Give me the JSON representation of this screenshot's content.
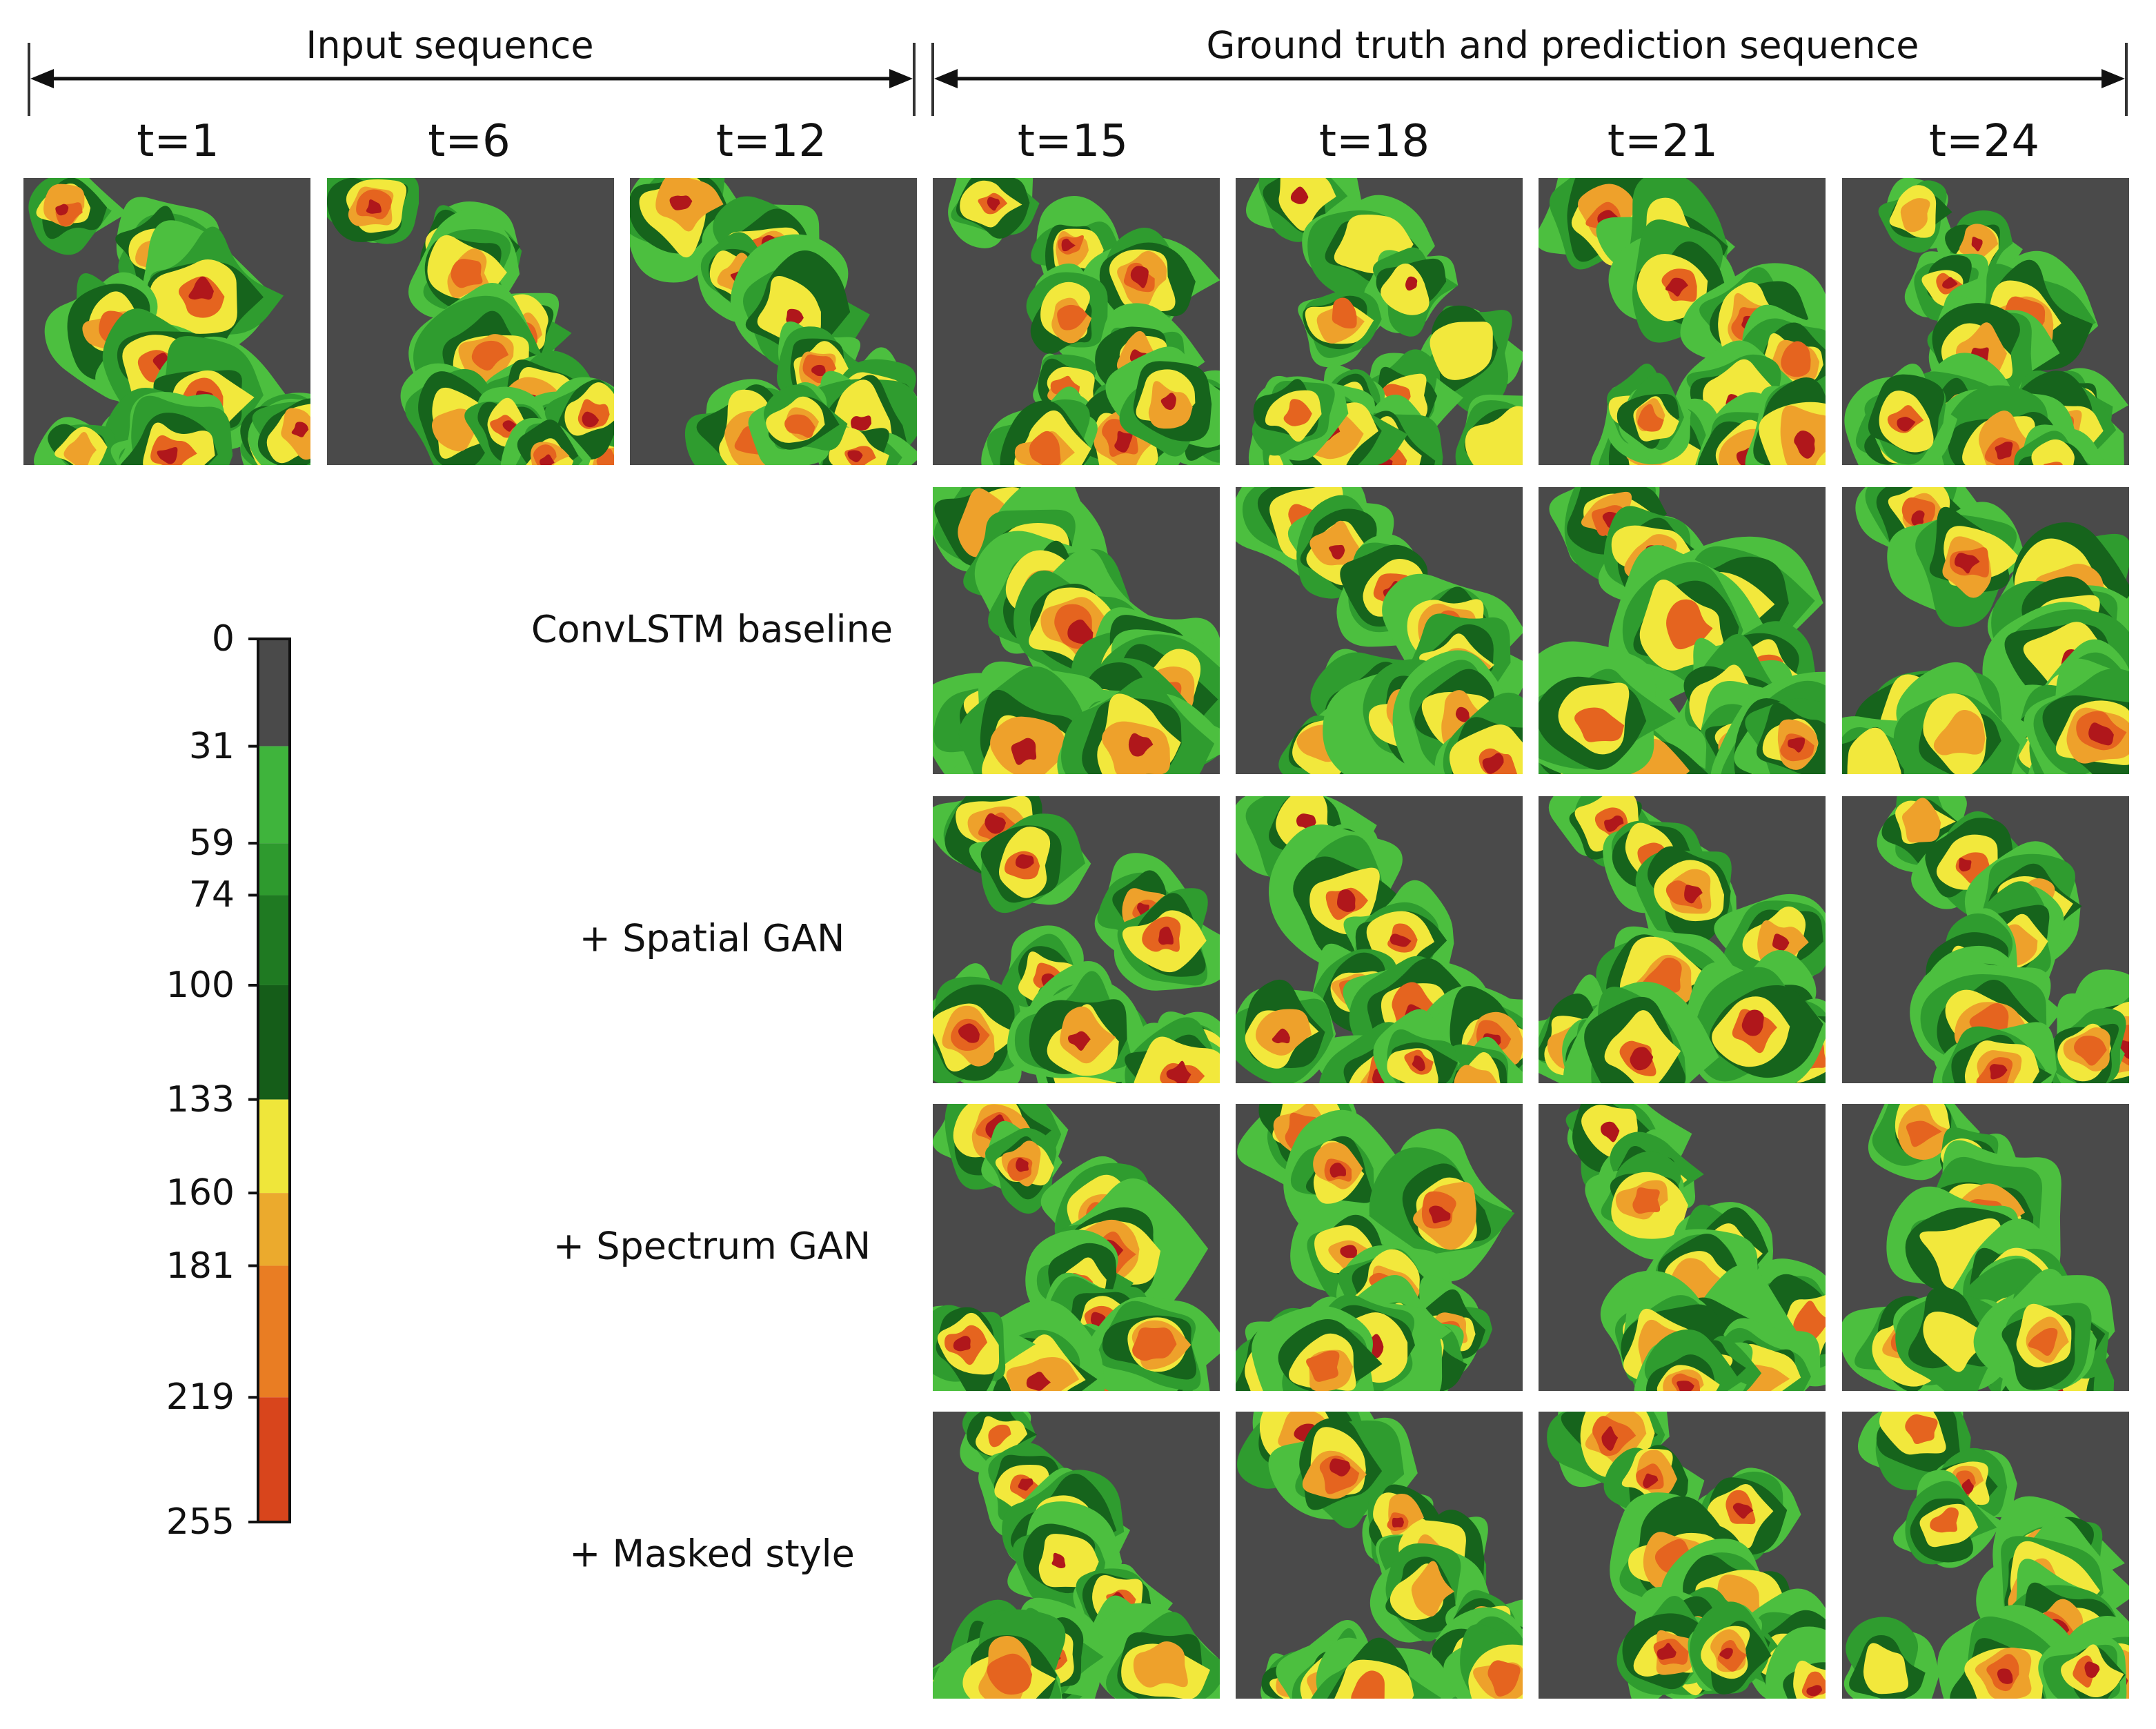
{
  "header": {
    "input_label": "Input sequence",
    "gt_label": "Ground truth and prediction sequence"
  },
  "columns": [
    "t=1",
    "t=6",
    "t=12",
    "t=15",
    "t=18",
    "t=21",
    "t=24"
  ],
  "rows": {
    "convlstm": "ConvLSTM baseline",
    "spatial_gan": "+ Spatial GAN",
    "spectrum_gan": "+ Spectrum GAN",
    "masked_style": "+ Masked style"
  },
  "colorbar": {
    "ticks": [
      "0",
      "31",
      "59",
      "74",
      "100",
      "133",
      "160",
      "181",
      "219",
      "255"
    ],
    "tick_values": [
      0,
      31,
      59,
      74,
      100,
      133,
      160,
      181,
      219,
      255
    ],
    "segment_colors": [
      "#4a4a4a",
      "#3fb43c",
      "#2e9a2e",
      "#1f7a22",
      "#155d19",
      "#efe63a",
      "#ebaa2d",
      "#e97d23",
      "#d8451c",
      "#a8141a"
    ],
    "segment_bounds": [
      0,
      31,
      59,
      74,
      100,
      133,
      160,
      181,
      219,
      255
    ]
  },
  "palette": {
    "background": "#4a4a4a",
    "green_light": "#4cbf3f",
    "green_mid": "#2f9c2f",
    "green_dark": "#16641c",
    "yellow": "#f2e83c",
    "orange": "#eea12b",
    "red_orange": "#e5641f",
    "dark_red": "#b0171b"
  }
}
